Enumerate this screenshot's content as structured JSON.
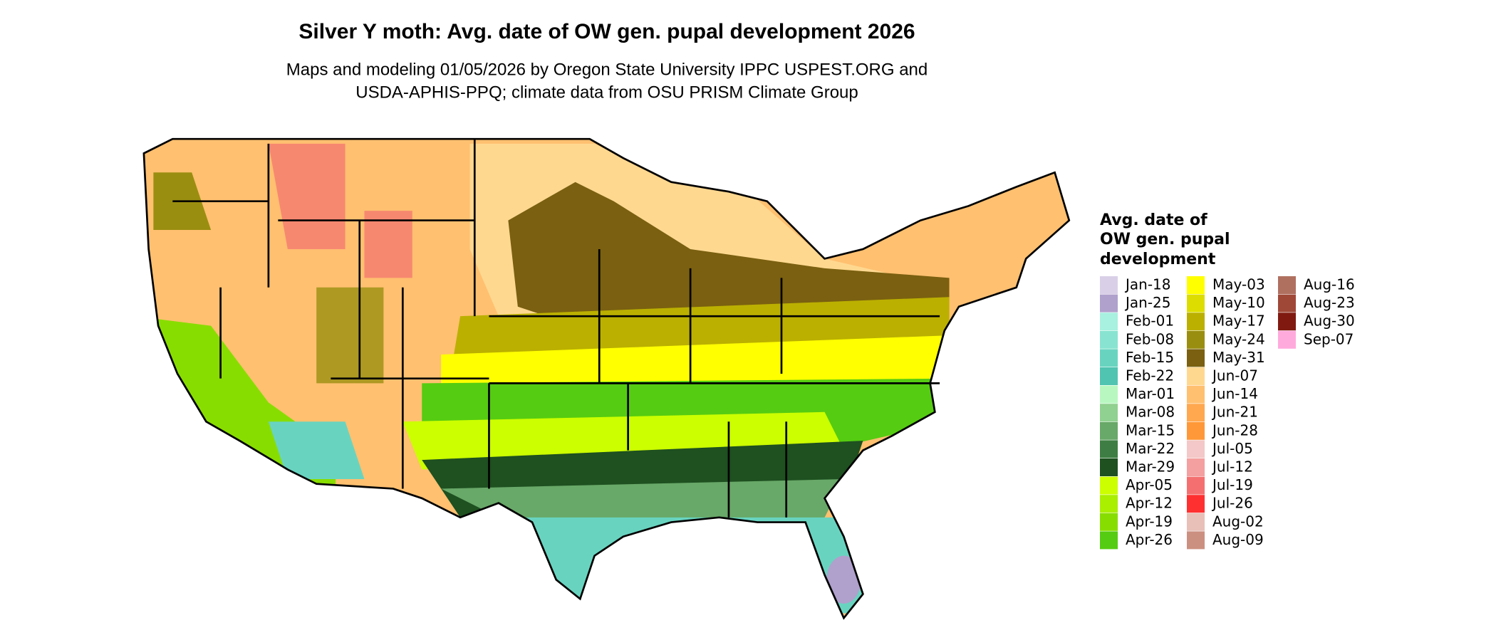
{
  "title": "Silver Y moth: Avg. date of OW gen. pupal development 2026",
  "subtitle": [
    "Maps and modeling 01/05/2026 by Oregon State University IPPC USPEST.ORG and",
    "USDA-APHIS-PPQ; climate data from OSU PRISM Climate Group"
  ],
  "legend": {
    "title": [
      "Avg. date of",
      "OW gen. pupal",
      "development"
    ],
    "items": [
      {
        "label": "Jan-18",
        "color": "#d9d0e8"
      },
      {
        "label": "Jan-25",
        "color": "#b0a0cc"
      },
      {
        "label": "Feb-01",
        "color": "#a8f0e0"
      },
      {
        "label": "Feb-08",
        "color": "#88e4d0"
      },
      {
        "label": "Feb-15",
        "color": "#68d4c0"
      },
      {
        "label": "Feb-22",
        "color": "#50c4b0"
      },
      {
        "label": "Mar-01",
        "color": "#b8f8c0"
      },
      {
        "label": "Mar-08",
        "color": "#90d090"
      },
      {
        "label": "Mar-15",
        "color": "#68a868"
      },
      {
        "label": "Mar-22",
        "color": "#3e7e44"
      },
      {
        "label": "Mar-29",
        "color": "#1e5020"
      },
      {
        "label": "Apr-05",
        "color": "#ccff00"
      },
      {
        "label": "Apr-12",
        "color": "#aaee00"
      },
      {
        "label": "Apr-19",
        "color": "#88dd00"
      },
      {
        "label": "Apr-26",
        "color": "#55cc11"
      },
      {
        "label": "May-03",
        "color": "#ffff00"
      },
      {
        "label": "May-10",
        "color": "#dddd00"
      },
      {
        "label": "May-17",
        "color": "#bbb000"
      },
      {
        "label": "May-24",
        "color": "#9a8e10"
      },
      {
        "label": "May-31",
        "color": "#7a6010"
      },
      {
        "label": "Jun-07",
        "color": "#ffd890"
      },
      {
        "label": "Jun-14",
        "color": "#ffc070"
      },
      {
        "label": "Jun-21",
        "color": "#ffa850"
      },
      {
        "label": "Jun-28",
        "color": "#ff9838"
      },
      {
        "label": "Jul-05",
        "color": "#f4c8c8"
      },
      {
        "label": "Jul-12",
        "color": "#f4a0a0"
      },
      {
        "label": "Jul-19",
        "color": "#f47070"
      },
      {
        "label": "Jul-26",
        "color": "#ff3030"
      },
      {
        "label": "Aug-02",
        "color": "#e8c0b8"
      },
      {
        "label": "Aug-09",
        "color": "#cc9080"
      },
      {
        "label": "Aug-16",
        "color": "#b07060"
      },
      {
        "label": "Aug-23",
        "color": "#a04838"
      },
      {
        "label": "Aug-30",
        "color": "#801a10"
      },
      {
        "label": "Sep-07",
        "color": "#ffaadd"
      }
    ]
  }
}
